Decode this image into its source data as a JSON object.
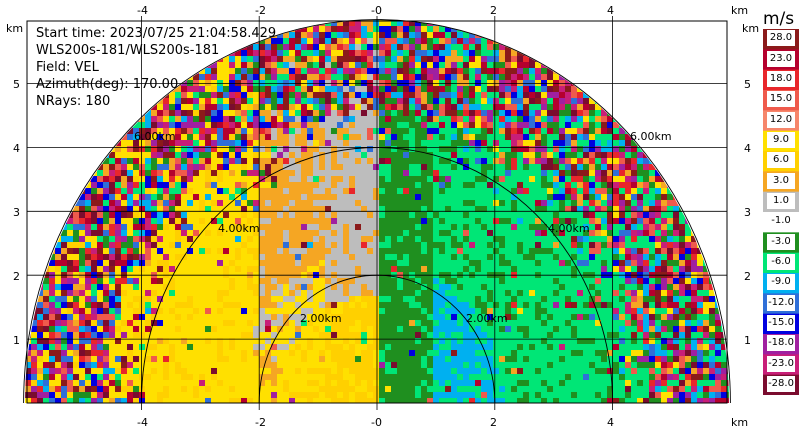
{
  "header": {
    "start_time": "Start time: 2023/07/25 21:04:58.429",
    "site": "WLS200s-181/WLS200s-181",
    "field": "Field: VEL",
    "azimuth": "Azimuth(deg): 170.00",
    "nrays": "NRays: 180"
  },
  "axes": {
    "x_ticks": [
      "-4",
      "-2",
      "-0",
      "2",
      "4"
    ],
    "x_unit": "km",
    "y_ticks": [
      "5",
      "4",
      "3",
      "2",
      "1"
    ],
    "y_unit": "km",
    "range_rings": [
      "2.00km",
      "4.00km",
      "6.00km"
    ]
  },
  "colorbar": {
    "unit": "m/s",
    "labels": [
      "28.0",
      "23.0",
      "18.0",
      "15.0",
      "12.0",
      "9.0",
      "6.0",
      "3.0",
      "1.0",
      "-1.0",
      "-3.0",
      "-6.0",
      "-9.0",
      "-12.0",
      "-15.0",
      "-18.0",
      "-23.0",
      "-28.0"
    ],
    "colors": [
      "#8b1a1a",
      "#b5002e",
      "#e8262b",
      "#ef5a4c",
      "#f6866b",
      "#ffe000",
      "#ffd000",
      "#f5a623",
      "#bdbdbd",
      "#ffffff",
      "#1f8f1f",
      "#00e676",
      "#00b0f0",
      "#2f6fd8",
      "#0000e0",
      "#a020a0",
      "#c81e78",
      "#7a0c2e"
    ]
  },
  "chart_data": {
    "type": "heatmap",
    "title": "",
    "field": "VEL",
    "unit": "m/s",
    "azimuth_deg": 170.0,
    "nrays": 180,
    "xlim": [
      -6.2,
      6.2
    ],
    "ylim": [
      0,
      6
    ],
    "range_rings_km": [
      2,
      4,
      6
    ],
    "grid": true,
    "colorbar_levels": [
      28,
      23,
      18,
      15,
      12,
      9,
      6,
      3,
      1,
      -1,
      -3,
      -6,
      -9,
      -12,
      -15,
      -18,
      -23,
      -28
    ]
  }
}
